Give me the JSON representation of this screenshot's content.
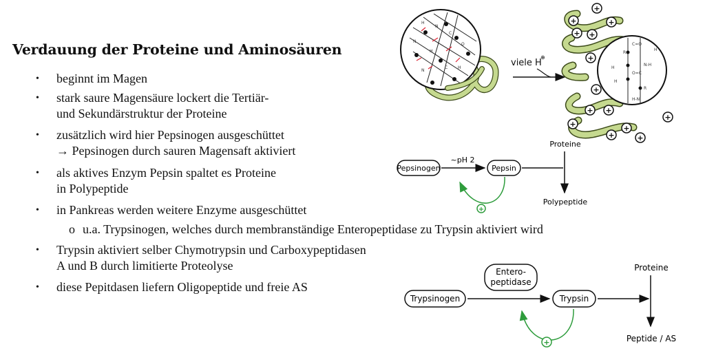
{
  "title": "Verdauung der Proteine und Aminosäuren",
  "bullets": [
    {
      "line1": "beginnt im Magen"
    },
    {
      "line1": "stark saure Magensäure lockert die Tertiär-",
      "line2": "und Sekundärstruktur der Proteine"
    },
    {
      "line1": "zusätzlich wird hier Pepsinogen ausgeschüttet",
      "line2": "→ Pepsinogen durch sauren Magensaft aktiviert"
    },
    {
      "line1": "als aktives Enzym Pepsin spaltet es Proteine",
      "line2": "in Polypeptide"
    },
    {
      "line1": "in Pankreas werden weitere Enzyme ausgeschüttet"
    },
    {
      "line1": "Trypsin aktiviert selber Chymotrypsin und Carboxypeptidasen",
      "line2": "A und B durch limitierte Proteolyse"
    },
    {
      "line1": "diese Pepitdasen liefern Oligopeptide und freie AS"
    }
  ],
  "subbullet": {
    "marker": "o",
    "text": "u.a. Trypsinogen, welches durch membranständige Enteropeptidase zu Trypsin aktiviert wird"
  },
  "bullet_symbol": "•",
  "diagram_top": {
    "arrow_label": "viele H",
    "superscript": "⊕"
  },
  "diagram_pepsin": {
    "pepsinogen": "Pepsinogen",
    "condition": "~pH 2",
    "pepsin": "Pepsin",
    "proteine": "Proteine",
    "polypeptide": "Polypeptide",
    "plus": "+"
  },
  "diagram_trypsin": {
    "trypsinogen": "Trypsinogen",
    "enzyme_line1": "Entero-",
    "enzyme_line2": "peptidase",
    "trypsin": "Trypsin",
    "proteine": "Proteine",
    "products": "Peptide / AS",
    "plus": "+"
  },
  "colors": {
    "green": "#2e9c3c",
    "protein_fill": "#c5d98f",
    "protein_edge": "#3c4a1a"
  }
}
